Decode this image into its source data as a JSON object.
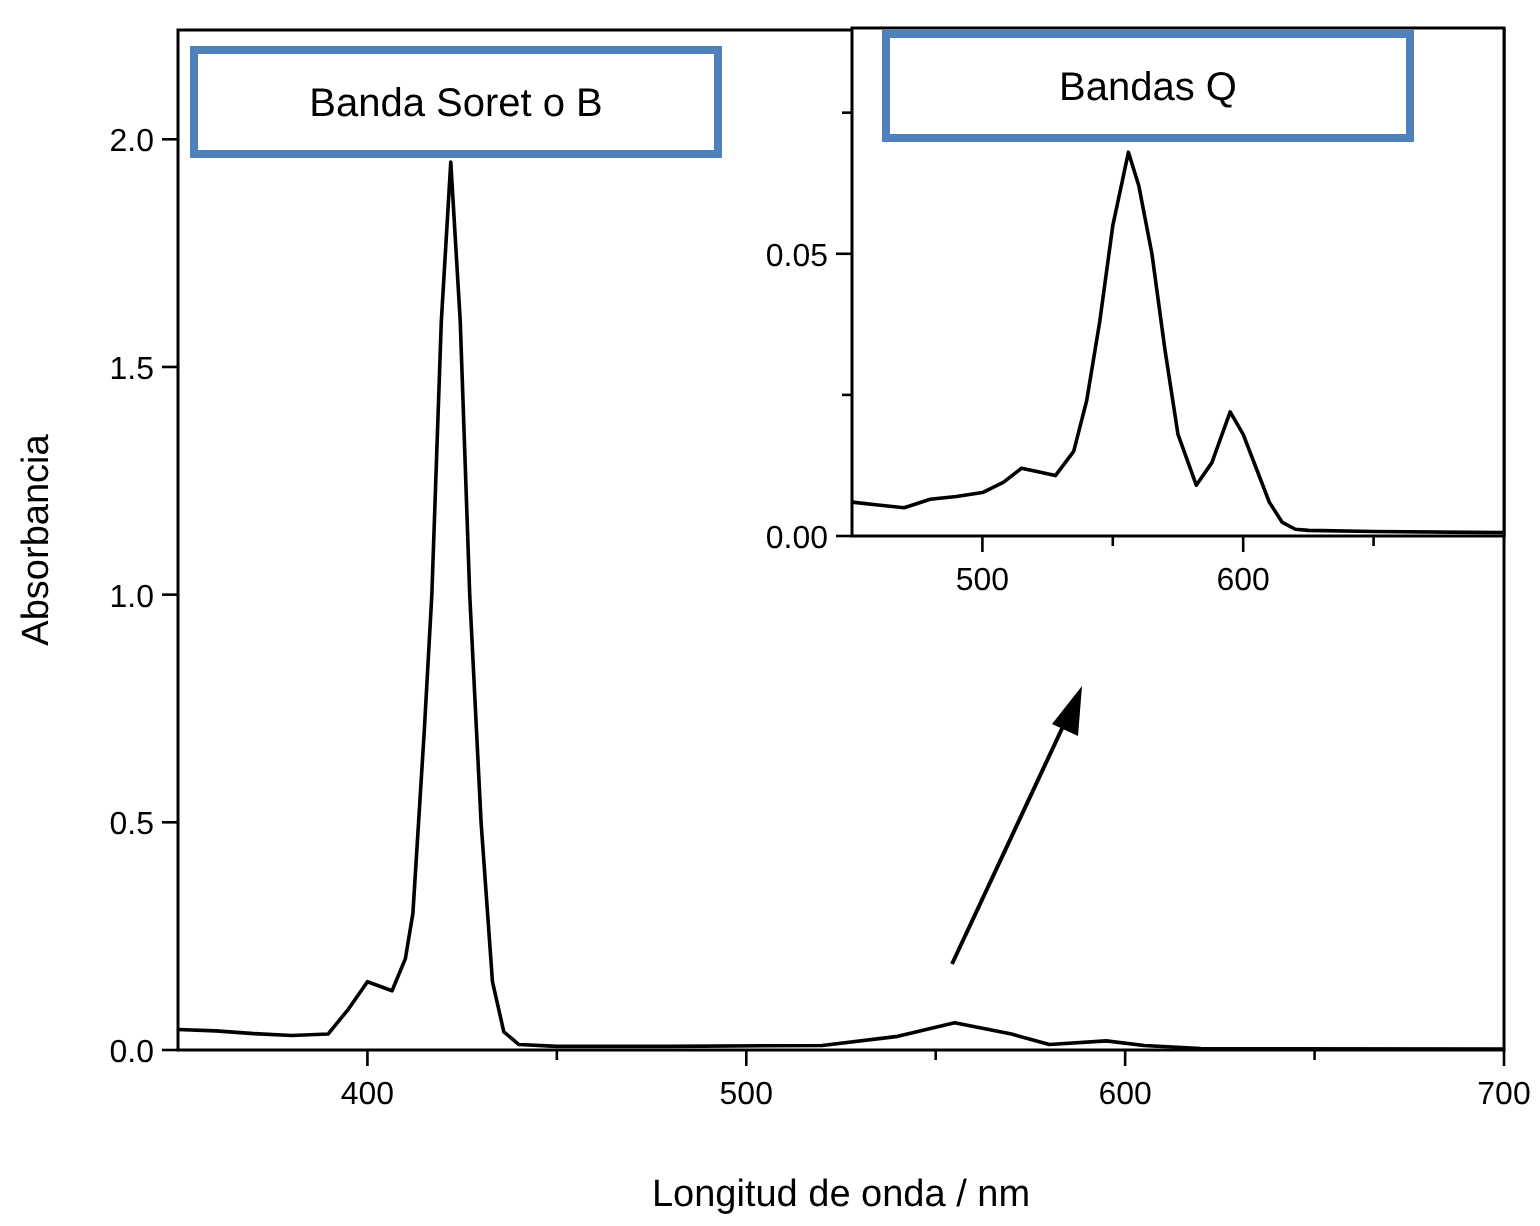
{
  "chart_data": [
    {
      "type": "line",
      "xlabel": "Longitud de onda / nm",
      "ylabel": "Absorbancia",
      "annotations": [
        "Banda Soret o B"
      ],
      "xlim": [
        350,
        700
      ],
      "ylim": [
        0,
        2.24
      ],
      "xticks": [
        400,
        {
          "value": 450,
          "label": null
        },
        500,
        {
          "value": 550,
          "label": null
        },
        600,
        {
          "value": 650,
          "label": null
        },
        700
      ],
      "yticks": [
        {
          "value": 0,
          "label": "0.0"
        },
        0.5,
        {
          "value": 1,
          "label": "1.0"
        },
        1.5,
        {
          "value": 2,
          "label": "2.0"
        }
      ],
      "series": [
        {
          "color": "#000000",
          "x": [
            350,
            360,
            370,
            380,
            389.6,
            395,
            400,
            406.5,
            410,
            412,
            415,
            417,
            419.5,
            422,
            424.5,
            427,
            430,
            433,
            436,
            440,
            450,
            480,
            520,
            540,
            555,
            570,
            580,
            595,
            605,
            620,
            700
          ],
          "values": [
            0.045,
            0.042,
            0.036,
            0.032,
            0.035,
            0.09,
            0.15,
            0.13,
            0.2,
            0.3,
            0.7,
            1.0,
            1.6,
            1.95,
            1.6,
            1.0,
            0.5,
            0.15,
            0.04,
            0.012,
            0.008,
            0.008,
            0.01,
            0.03,
            0.06,
            0.035,
            0.012,
            0.02,
            0.01,
            0.003,
            0.002
          ]
        }
      ]
    },
    {
      "type": "line",
      "annotations": [
        "Bandas Q"
      ],
      "xlim": [
        450,
        700
      ],
      "ylim": [
        0,
        0.09
      ],
      "xticks": [
        500,
        {
          "value": 550,
          "label": null
        },
        600,
        {
          "value": 650,
          "label": null
        }
      ],
      "yticks": [
        {
          "value": 0,
          "label": "0.00"
        },
        {
          "value": 0.025,
          "label": null
        },
        0.05,
        {
          "value": 0.075,
          "label": null
        }
      ],
      "series": [
        {
          "color": "#000000",
          "x": [
            450,
            460,
            470,
            480,
            490,
            500,
            508,
            515,
            520,
            528,
            535,
            540,
            545,
            550,
            556,
            560,
            565,
            570,
            575,
            582,
            588,
            595,
            600,
            605,
            610,
            615,
            620,
            625,
            650,
            700
          ],
          "values": [
            0.006,
            0.0055,
            0.005,
            0.0065,
            0.007,
            0.0077,
            0.0095,
            0.012,
            0.0115,
            0.0107,
            0.015,
            0.024,
            0.038,
            0.055,
            0.068,
            0.062,
            0.05,
            0.033,
            0.018,
            0.009,
            0.013,
            0.022,
            0.018,
            0.012,
            0.006,
            0.0024,
            0.0012,
            0.001,
            0.0008,
            0.0006
          ]
        }
      ]
    }
  ]
}
